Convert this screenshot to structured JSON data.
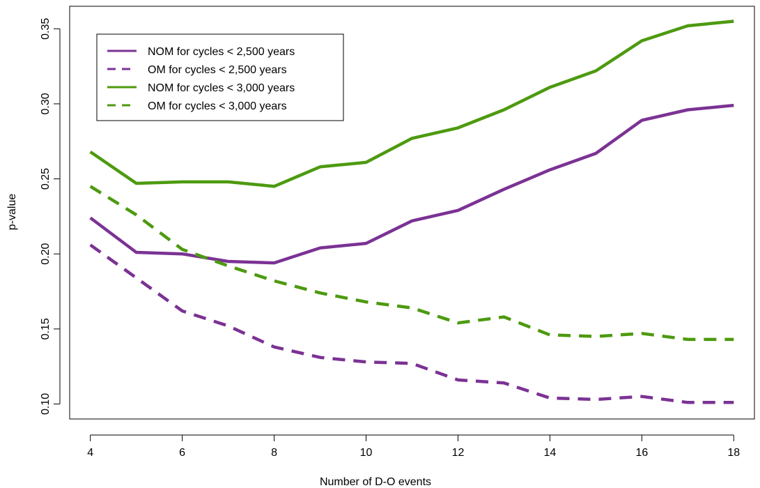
{
  "chart_data": {
    "type": "line",
    "title": "",
    "xlabel": "Number of D-O events",
    "ylabel": "p-value",
    "xlim": [
      3.55,
      18.45
    ],
    "ylim": [
      0.09,
      0.365
    ],
    "xticks": [
      4,
      6,
      8,
      10,
      12,
      14,
      16,
      18
    ],
    "xtick_labels": [
      "4",
      "6",
      "8",
      "10",
      "12",
      "14",
      "16",
      "18"
    ],
    "yticks": [
      0.1,
      0.15,
      0.2,
      0.25,
      0.3,
      0.35
    ],
    "ytick_labels": [
      "0.10",
      "0.15",
      "0.20",
      "0.25",
      "0.30",
      "0.35"
    ],
    "grid": false,
    "legend_position": "top-left",
    "x": [
      4,
      5,
      6,
      7,
      8,
      9,
      10,
      11,
      12,
      13,
      14,
      15,
      16,
      17,
      18
    ],
    "series": [
      {
        "name": "NOM for cycles < 2,500 years",
        "color": "#7b3294",
        "dash": "solid",
        "values": [
          0.224,
          0.201,
          0.2,
          0.195,
          0.194,
          0.204,
          0.207,
          0.222,
          0.229,
          0.243,
          0.256,
          0.267,
          0.289,
          0.296,
          0.299
        ]
      },
      {
        "name": "OM for cycles < 2,500 years",
        "color": "#7b3294",
        "dash": "dashed",
        "values": [
          0.206,
          0.184,
          0.162,
          0.152,
          0.138,
          0.131,
          0.128,
          0.127,
          0.116,
          0.114,
          0.104,
          0.103,
          0.105,
          0.101,
          0.101
        ]
      },
      {
        "name": "NOM for cycles < 3,000 years",
        "color": "#4d9a0f",
        "dash": "solid",
        "values": [
          0.268,
          0.247,
          0.248,
          0.248,
          0.245,
          0.258,
          0.261,
          0.277,
          0.284,
          0.296,
          0.311,
          0.322,
          0.342,
          0.352,
          0.355
        ]
      },
      {
        "name": "OM for cycles < 3,000 years",
        "color": "#4d9a0f",
        "dash": "dashed",
        "values": [
          0.245,
          0.226,
          0.203,
          0.192,
          0.182,
          0.174,
          0.168,
          0.164,
          0.154,
          0.158,
          0.146,
          0.145,
          0.147,
          0.143,
          0.143
        ]
      }
    ]
  }
}
